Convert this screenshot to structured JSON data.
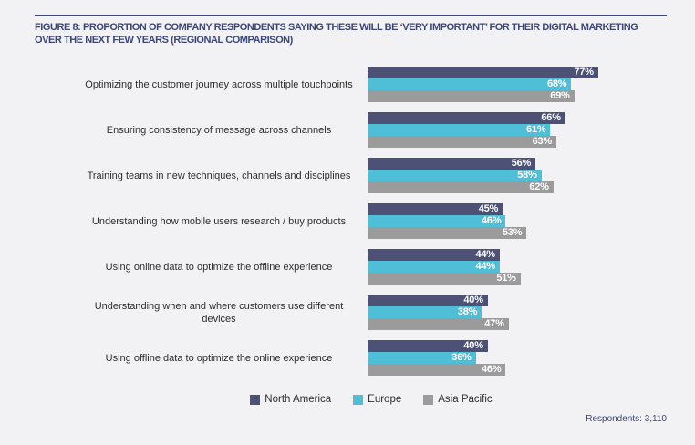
{
  "page": {
    "background": "#f2f2f4",
    "accent": "#3d4677"
  },
  "header": {
    "title": "FIGURE 8: PROPORTION OF COMPANY RESPONDENTS SAYING THESE WILL BE ‘VERY IMPORTANT’ FOR THEIR DIGITAL MARKETING OVER THE NEXT FEW YEARS (REGIONAL COMPARISON)"
  },
  "chart_data": {
    "type": "bar",
    "orientation": "horizontal",
    "title": "FIGURE 8: PROPORTION OF COMPANY RESPONDENTS SAYING THESE WILL BE ‘VERY IMPORTANT’ FOR THEIR DIGITAL MARKETING OVER THE NEXT FEW YEARS (REGIONAL COMPARISON)",
    "categories": [
      "Optimizing the customer journey across multiple touchpoints",
      "Ensuring consistency of message across channels",
      "Training teams in new techniques, channels and disciplines",
      "Understanding how mobile users research / buy products",
      "Using online data to optimize the offline experience",
      "Understanding when and where customers use different devices",
      "Using offline data to optimize the online experience"
    ],
    "series": [
      {
        "name": "North America",
        "color": "#4d5175",
        "values": [
          77,
          66,
          56,
          45,
          44,
          40,
          40
        ]
      },
      {
        "name": "Europe",
        "color": "#4fbfd8",
        "values": [
          68,
          61,
          58,
          46,
          44,
          38,
          36
        ]
      },
      {
        "name": "Asia Pacific",
        "color": "#9c9b9b",
        "values": [
          69,
          63,
          62,
          53,
          51,
          47,
          46
        ]
      }
    ],
    "value_suffix": "%",
    "value_labels": "inside-end",
    "xlim": [
      0,
      85
    ],
    "grid": false,
    "legend_position": "bottom"
  },
  "footer": {
    "respondents": "Respondents: 3,110"
  }
}
